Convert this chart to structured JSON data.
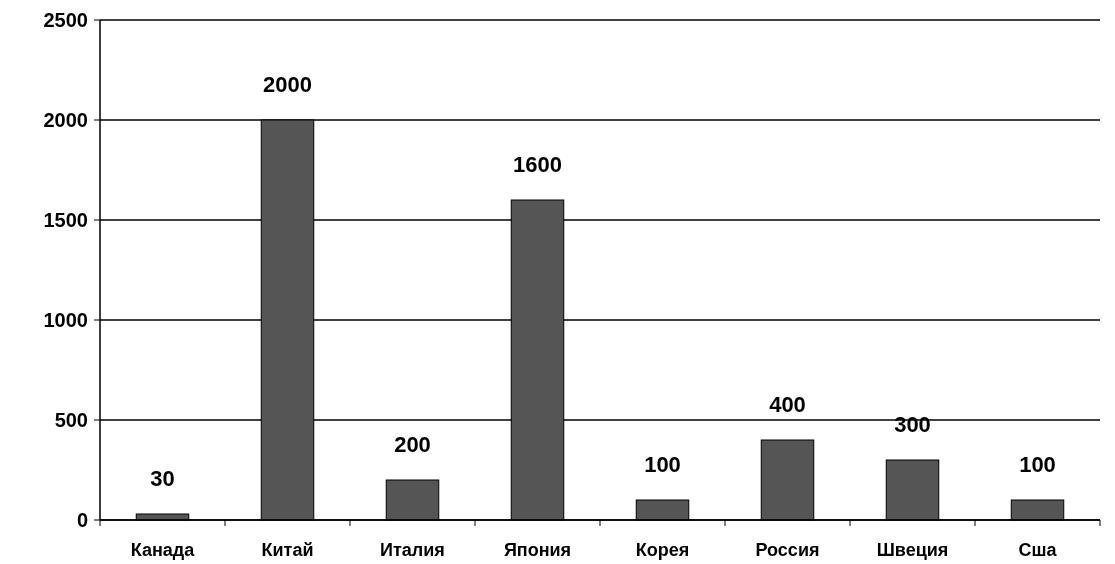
{
  "chart_data": {
    "type": "bar",
    "categories": [
      "Канада",
      "Китай",
      "Италия",
      "Япония",
      "Корея",
      "Россия",
      "Швеция",
      "Сша"
    ],
    "values": [
      30,
      2000,
      200,
      1600,
      100,
      400,
      300,
      100
    ],
    "color": "#555555",
    "ylim": [
      0,
      2500
    ],
    "yticks": [
      0,
      500,
      1000,
      1500,
      2000,
      2500
    ],
    "grid": "y",
    "data_labels": true
  }
}
